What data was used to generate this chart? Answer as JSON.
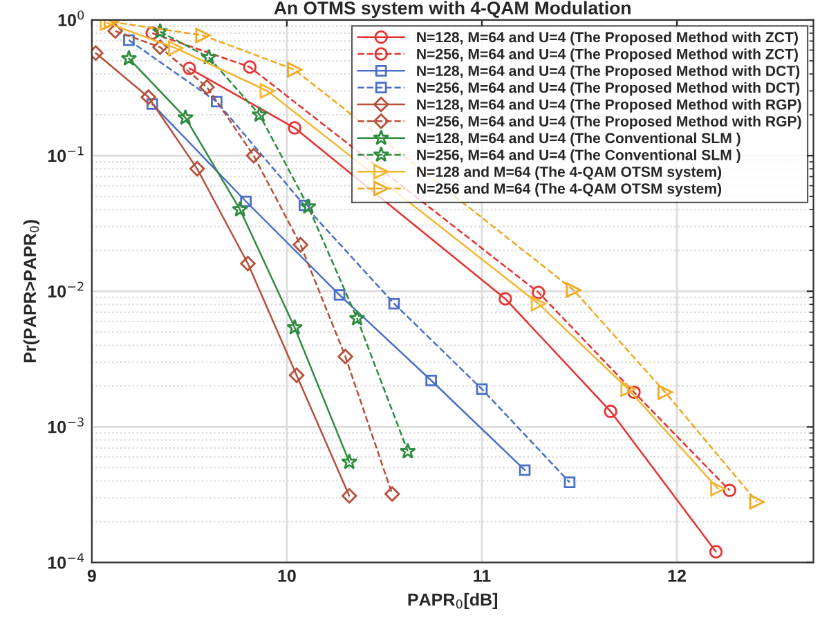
{
  "chart_data": {
    "type": "line",
    "title": "An OTMS system with 4-QAM Modulation",
    "xlabel": "PAPR$_{0}$[dB]",
    "ylabel": "Pr(PAPR>PAPR$_{0}$)",
    "log": "y",
    "xlim": [
      9,
      12.7
    ],
    "xticks": [
      9,
      10,
      11,
      12
    ],
    "ylim": [
      0.0001,
      1
    ],
    "yticks": [
      {
        "value": 0.0001,
        "label": "10$^{−4}$"
      },
      {
        "value": 0.001,
        "label": "10$^{−3}$"
      },
      {
        "value": 0.01,
        "label": "10$^{−2}$"
      },
      {
        "value": 0.1,
        "label": "10$^{−1}$"
      },
      {
        "value": 1,
        "label": "10$^{0}$"
      }
    ],
    "grid": true,
    "legend": "top right",
    "series": [
      {
        "name": "N=128, M=64 and U=4 (The Proposed Method with ZCT)",
        "color": "#e8312f",
        "marker": "circle",
        "line_style": "solid",
        "x": [
          9.5,
          10.04,
          11.12,
          11.66,
          12.2
        ],
        "values": [
          0.44,
          0.16,
          0.0088,
          0.0013,
          0.00012
        ]
      },
      {
        "name": "N=256, M=64 and U=4 (The Proposed Method with ZCT)",
        "color": "#e8312f",
        "marker": "circle",
        "line_style": "dashed",
        "x": [
          9.31,
          9.81,
          11.29,
          11.78,
          12.27
        ],
        "values": [
          0.8,
          0.45,
          0.0098,
          0.0018,
          0.00034
        ]
      },
      {
        "name": "N=128, M=64 and U=4 (The Proposed Method with DCT)",
        "color": "#4a6fc7",
        "marker": "square",
        "line_style": "solid",
        "x": [
          9.31,
          9.79,
          10.27,
          10.74,
          11.22
        ],
        "values": [
          0.24,
          0.046,
          0.0094,
          0.0022,
          0.00048
        ]
      },
      {
        "name": "N=256, M=64 and U=4 (The Proposed Method with DCT)",
        "color": "#4a6fc7",
        "marker": "square",
        "line_style": "dashed",
        "x": [
          9.19,
          9.64,
          10.09,
          10.55,
          11.0,
          11.45
        ],
        "values": [
          0.71,
          0.25,
          0.043,
          0.0081,
          0.0019,
          0.00039
        ]
      },
      {
        "name": "N=128, M=64 and U=4 (The Proposed Method with RGP)",
        "color": "#b5503a",
        "marker": "diamond",
        "line_style": "solid",
        "x": [
          9.02,
          9.29,
          9.54,
          9.8,
          10.05,
          10.32
        ],
        "values": [
          0.57,
          0.27,
          0.08,
          0.016,
          0.0024,
          0.00031
        ]
      },
      {
        "name": "N=256, M=64 and U=4 (The Proposed Method with RGP)",
        "color": "#b5503a",
        "marker": "diamond",
        "line_style": "dashed",
        "x": [
          9.12,
          9.35,
          9.59,
          9.83,
          10.07,
          10.3,
          10.54
        ],
        "values": [
          0.83,
          0.63,
          0.32,
          0.1,
          0.022,
          0.0033,
          0.00032
        ]
      },
      {
        "name": "N=128, M=64 and U=4 (The Conventional SLM )",
        "color": "#2e8b3e",
        "marker": "star",
        "line_style": "solid",
        "x": [
          9.19,
          9.48,
          9.76,
          10.04,
          10.32
        ],
        "values": [
          0.52,
          0.19,
          0.04,
          0.0054,
          0.00055
        ]
      },
      {
        "name": "N=256, M=64 and U=4 (The Conventional SLM )",
        "color": "#2e8b3e",
        "marker": "star",
        "line_style": "dashed",
        "x": [
          9.35,
          9.6,
          9.86,
          10.11,
          10.36,
          10.62
        ],
        "values": [
          0.82,
          0.53,
          0.2,
          0.042,
          0.0063,
          0.00066
        ]
      },
      {
        "name": "N=128 and M=64 (The 4-QAM OTSM system)",
        "color": "#f2b632",
        "marker": "triangle",
        "line_style": "solid",
        "x": [
          9.08,
          9.43,
          9.9,
          11.29,
          11.75,
          12.21
        ],
        "values": [
          0.95,
          0.62,
          0.3,
          0.0081,
          0.0019,
          0.00035
        ]
      },
      {
        "name": "N=256 and M=64 (The 4-QAM OTSM system)",
        "color": "#f0a81e",
        "marker": "triangle",
        "line_style": "dashed",
        "x": [
          9.1,
          9.57,
          10.04,
          11.47,
          11.94,
          12.41
        ],
        "values": [
          0.97,
          0.77,
          0.43,
          0.0102,
          0.0018,
          0.00028
        ]
      }
    ]
  }
}
